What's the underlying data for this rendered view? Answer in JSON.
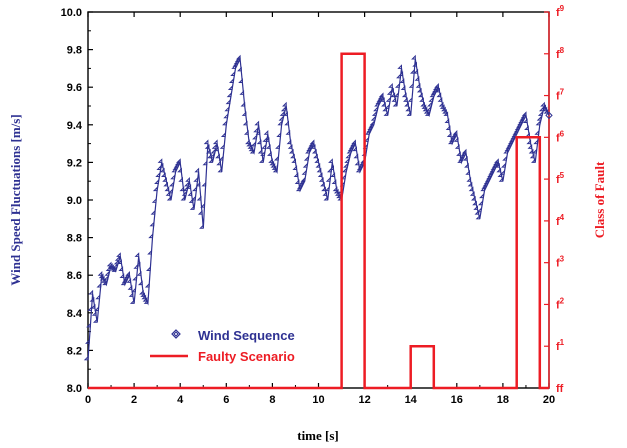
{
  "chart_data": {
    "type": "line",
    "xlabel": "time [s]",
    "ylabel_left": "Wind Speed Fluctuations [m/s]",
    "ylabel_right": "Class of Fault",
    "xlim": [
      0,
      20
    ],
    "ylim_left": [
      8.0,
      10.0
    ],
    "ylim_right": [
      0,
      9
    ],
    "x_ticks": [
      "0",
      "2",
      "4",
      "6",
      "8",
      "10",
      "12",
      "14",
      "16",
      "18",
      "20"
    ],
    "y_ticks_left": [
      "8.0",
      "8.2",
      "8.4",
      "8.6",
      "8.8",
      "9.0",
      "9.2",
      "9.4",
      "9.6",
      "9.8",
      "10.0"
    ],
    "y_ticks_right": [
      {
        "base": "ff",
        "sub": ""
      },
      {
        "base": "f",
        "sub": "1"
      },
      {
        "base": "f",
        "sub": "2"
      },
      {
        "base": "f",
        "sub": "3"
      },
      {
        "base": "f",
        "sub": "4"
      },
      {
        "base": "f",
        "sub": "5"
      },
      {
        "base": "f",
        "sub": "6"
      },
      {
        "base": "f",
        "sub": "7"
      },
      {
        "base": "f",
        "sub": "8"
      },
      {
        "base": "f",
        "sub": "9"
      }
    ],
    "grid": false,
    "legend_position": "bottom-left",
    "colors": {
      "wind": "#2e3192",
      "fault": "#ed1c24",
      "right_axis": "#ed1c24"
    },
    "series": [
      {
        "name": "Wind Sequence",
        "axis": "left",
        "marker": "diamond",
        "x": [
          0,
          0.2,
          0.4,
          0.6,
          0.8,
          1.0,
          1.2,
          1.4,
          1.6,
          1.8,
          2.0,
          2.2,
          2.4,
          2.6,
          2.8,
          3.0,
          3.2,
          3.4,
          3.6,
          3.8,
          4.0,
          4.2,
          4.4,
          4.6,
          4.8,
          5.0,
          5.2,
          5.4,
          5.6,
          5.8,
          6.0,
          6.2,
          6.4,
          6.6,
          6.8,
          7.0,
          7.2,
          7.4,
          7.6,
          7.8,
          8.0,
          8.2,
          8.4,
          8.6,
          8.8,
          9.0,
          9.2,
          9.4,
          9.6,
          9.8,
          10.0,
          10.2,
          10.4,
          10.6,
          10.8,
          11.0,
          11.2,
          11.4,
          11.6,
          11.8,
          12.0,
          12.2,
          12.4,
          12.6,
          12.8,
          13.0,
          13.2,
          13.4,
          13.6,
          13.8,
          14.0,
          14.2,
          14.4,
          14.6,
          14.8,
          15.0,
          15.2,
          15.4,
          15.6,
          15.8,
          16.0,
          16.2,
          16.4,
          16.6,
          16.8,
          17.0,
          17.2,
          17.4,
          17.6,
          17.8,
          18.0,
          18.2,
          18.4,
          18.6,
          18.8,
          19.0,
          19.2,
          19.4,
          19.6,
          19.8,
          20.0
        ],
        "y": [
          8.15,
          8.5,
          8.35,
          8.6,
          8.55,
          8.65,
          8.62,
          8.7,
          8.55,
          8.6,
          8.45,
          8.7,
          8.5,
          8.45,
          8.8,
          9.05,
          9.2,
          9.1,
          9.0,
          9.15,
          9.2,
          9.0,
          9.1,
          8.95,
          9.15,
          8.85,
          9.3,
          9.2,
          9.3,
          9.15,
          9.4,
          9.55,
          9.7,
          9.75,
          9.5,
          9.3,
          9.25,
          9.4,
          9.2,
          9.35,
          9.2,
          9.15,
          9.4,
          9.5,
          9.3,
          9.2,
          9.05,
          9.1,
          9.25,
          9.3,
          9.2,
          9.1,
          9.0,
          9.2,
          9.05,
          9.0,
          9.15,
          9.25,
          9.3,
          9.15,
          9.2,
          9.35,
          9.4,
          9.5,
          9.55,
          9.45,
          9.6,
          9.5,
          9.7,
          9.55,
          9.45,
          9.75,
          9.6,
          9.5,
          9.45,
          9.55,
          9.6,
          9.5,
          9.45,
          9.3,
          9.35,
          9.2,
          9.25,
          9.1,
          9.0,
          8.9,
          9.05,
          9.1,
          9.15,
          9.2,
          9.1,
          9.25,
          9.3,
          9.35,
          9.4,
          9.45,
          9.3,
          9.2,
          9.4,
          9.5,
          9.45
        ]
      },
      {
        "name": "Faulty Scenario",
        "axis": "right",
        "marker": "none",
        "x": [
          0,
          11.0,
          11.0,
          12.0,
          12.0,
          14.0,
          14.0,
          15.0,
          15.0,
          18.6,
          18.6,
          19.6,
          19.6,
          20.0
        ],
        "y": [
          0,
          0,
          8,
          8,
          0,
          0,
          1,
          1,
          0,
          0,
          6,
          6,
          0,
          0
        ]
      }
    ]
  }
}
